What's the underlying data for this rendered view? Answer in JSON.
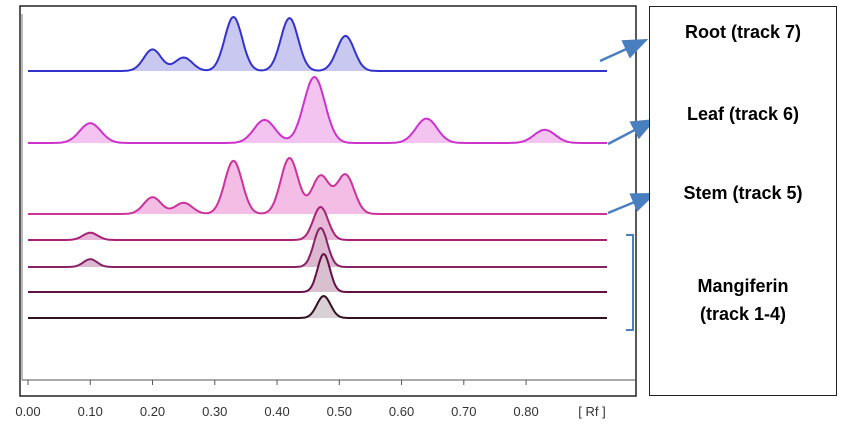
{
  "chart_data": {
    "type": "line",
    "xlabel": "[ Rf ]",
    "xlim": [
      0.0,
      0.93
    ],
    "xticks": [
      "0.00",
      "0.10",
      "0.20",
      "0.30",
      "0.40",
      "0.50",
      "0.60",
      "0.70",
      "0.80"
    ],
    "series": [
      {
        "name": "Root (track 7)",
        "color": "#3333cc",
        "fill": "#c8c8f0",
        "x_range": [
          0.0,
          0.93
        ],
        "peaks": [
          {
            "rf": 0.2,
            "height": 0.4
          },
          {
            "rf": 0.25,
            "height": 0.25
          },
          {
            "rf": 0.33,
            "height": 1.0
          },
          {
            "rf": 0.42,
            "height": 0.98
          },
          {
            "rf": 0.51,
            "height": 0.65
          }
        ]
      },
      {
        "name": "Leaf (track 6)",
        "color": "#cc33cc",
        "fill": "#f3c4f0",
        "x_range": [
          0.0,
          0.93
        ],
        "peaks": [
          {
            "rf": 0.1,
            "height": 0.3
          },
          {
            "rf": 0.38,
            "height": 0.35
          },
          {
            "rf": 0.46,
            "height": 1.0
          },
          {
            "rf": 0.64,
            "height": 0.37
          },
          {
            "rf": 0.83,
            "height": 0.2
          }
        ]
      },
      {
        "name": "Stem (track 5)",
        "color": "#cc3399",
        "fill": "#f3bde6",
        "x_range": [
          0.0,
          0.93
        ],
        "peaks": [
          {
            "rf": 0.2,
            "height": 0.3
          },
          {
            "rf": 0.25,
            "height": 0.2
          },
          {
            "rf": 0.33,
            "height": 0.95
          },
          {
            "rf": 0.42,
            "height": 1.0
          },
          {
            "rf": 0.47,
            "height": 0.68
          },
          {
            "rf": 0.51,
            "height": 0.7
          }
        ]
      },
      {
        "name": "Mangiferin track 4",
        "color": "#aa2277",
        "fill": "#e8b8d8",
        "x_range": [
          0.0,
          0.93
        ],
        "peaks": [
          {
            "rf": 0.1,
            "height": 0.22
          },
          {
            "rf": 0.47,
            "height": 1.0
          }
        ]
      },
      {
        "name": "Mangiferin track 3",
        "color": "#882266",
        "fill": "#dcb8d0",
        "x_range": [
          0.0,
          0.93
        ],
        "peaks": [
          {
            "rf": 0.1,
            "height": 0.2
          },
          {
            "rf": 0.47,
            "height": 1.0
          }
        ]
      },
      {
        "name": "Mangiferin track 2",
        "color": "#661144",
        "fill": "#d8c0d0",
        "x_range": [
          0.0,
          0.93
        ],
        "peaks": [
          {
            "rf": 0.475,
            "height": 1.0
          }
        ]
      },
      {
        "name": "Mangiferin track 1",
        "color": "#331122",
        "fill": "#d8d0d4",
        "x_range": [
          0.0,
          0.93
        ],
        "peaks": [
          {
            "rf": 0.475,
            "height": 1.0
          }
        ]
      }
    ],
    "annotations": [
      {
        "text": "Root (track 7)",
        "points_to": "Root (track 7)"
      },
      {
        "text": "Leaf (track 6)",
        "points_to": "Leaf (track 6)"
      },
      {
        "text": "Stem (track 5)",
        "points_to": "Stem (track 5)"
      },
      {
        "text": "Mangiferin",
        "text2": "(track 1-4)",
        "points_to": "Mangiferin tracks 1-4"
      }
    ],
    "grid": false,
    "legend": "right"
  },
  "colors": {
    "arrow": "#4a7fbf",
    "bracket": "#4a7fbf",
    "frame": "#222222"
  }
}
